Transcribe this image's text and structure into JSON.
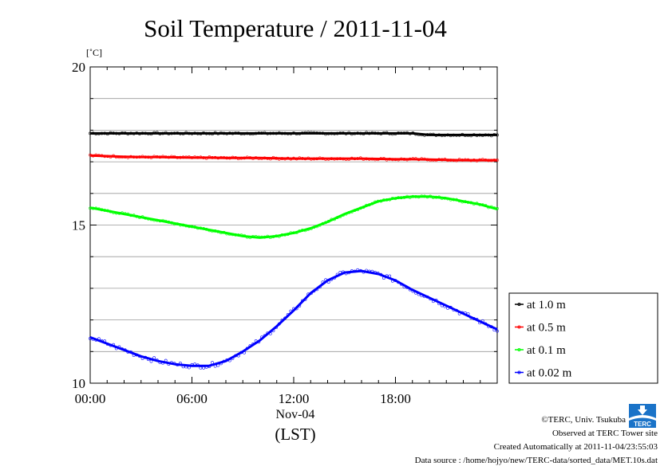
{
  "page": {
    "credits": [
      "©TERC, Univ. Tsukuba",
      "Observed at TERC Tower site",
      "Created Automatically at 2011-11-04/23:55:03",
      "Data source : /home/hojyo/new/TERC-data/sorted_data/MET.10s.dat"
    ],
    "logo_text": "TERC"
  },
  "chart_data": {
    "type": "line",
    "title": "Soil Temperature / 2011-11-04",
    "ylabel": "[˚C]",
    "xlabel": "(LST)",
    "date_label": "Nov-04",
    "x_ticks": [
      "00:00",
      "06:00",
      "12:00",
      "18:00"
    ],
    "y_ticks": [
      10,
      15,
      20
    ],
    "ylim": [
      10,
      20
    ],
    "xlim": [
      0,
      24
    ],
    "grid": true,
    "legend_position": "right-bottom",
    "x": [
      0,
      1,
      2,
      3,
      4,
      5,
      6,
      7,
      8,
      9,
      10,
      11,
      12,
      13,
      14,
      15,
      16,
      17,
      18,
      19,
      20,
      21,
      22,
      23,
      24
    ],
    "series": [
      {
        "name": "at 1.0 m",
        "color": "#000000",
        "values": [
          17.9,
          17.9,
          17.9,
          17.9,
          17.9,
          17.9,
          17.9,
          17.9,
          17.9,
          17.9,
          17.9,
          17.9,
          17.9,
          17.9,
          17.9,
          17.9,
          17.9,
          17.9,
          17.9,
          17.9,
          17.85,
          17.85,
          17.85,
          17.85,
          17.85
        ]
      },
      {
        "name": "at 0.5 m",
        "color": "#ff0000",
        "values": [
          17.2,
          17.18,
          17.16,
          17.15,
          17.15,
          17.14,
          17.13,
          17.13,
          17.12,
          17.12,
          17.12,
          17.11,
          17.1,
          17.1,
          17.1,
          17.1,
          17.1,
          17.09,
          17.08,
          17.08,
          17.07,
          17.06,
          17.05,
          17.05,
          17.05
        ]
      },
      {
        "name": "at 0.1 m",
        "color": "#00ff00",
        "values": [
          15.55,
          15.45,
          15.35,
          15.25,
          15.15,
          15.05,
          14.95,
          14.85,
          14.75,
          14.65,
          14.6,
          14.65,
          14.75,
          14.9,
          15.1,
          15.35,
          15.55,
          15.75,
          15.85,
          15.9,
          15.9,
          15.85,
          15.75,
          15.65,
          15.5
        ]
      },
      {
        "name": "at 0.02 m",
        "color": "#0000ff",
        "values": [
          11.45,
          11.25,
          11.05,
          10.85,
          10.7,
          10.6,
          10.55,
          10.55,
          10.7,
          11.0,
          11.35,
          11.8,
          12.3,
          12.85,
          13.25,
          13.5,
          13.55,
          13.45,
          13.25,
          12.95,
          12.7,
          12.45,
          12.2,
          11.95,
          11.7
        ]
      }
    ]
  }
}
